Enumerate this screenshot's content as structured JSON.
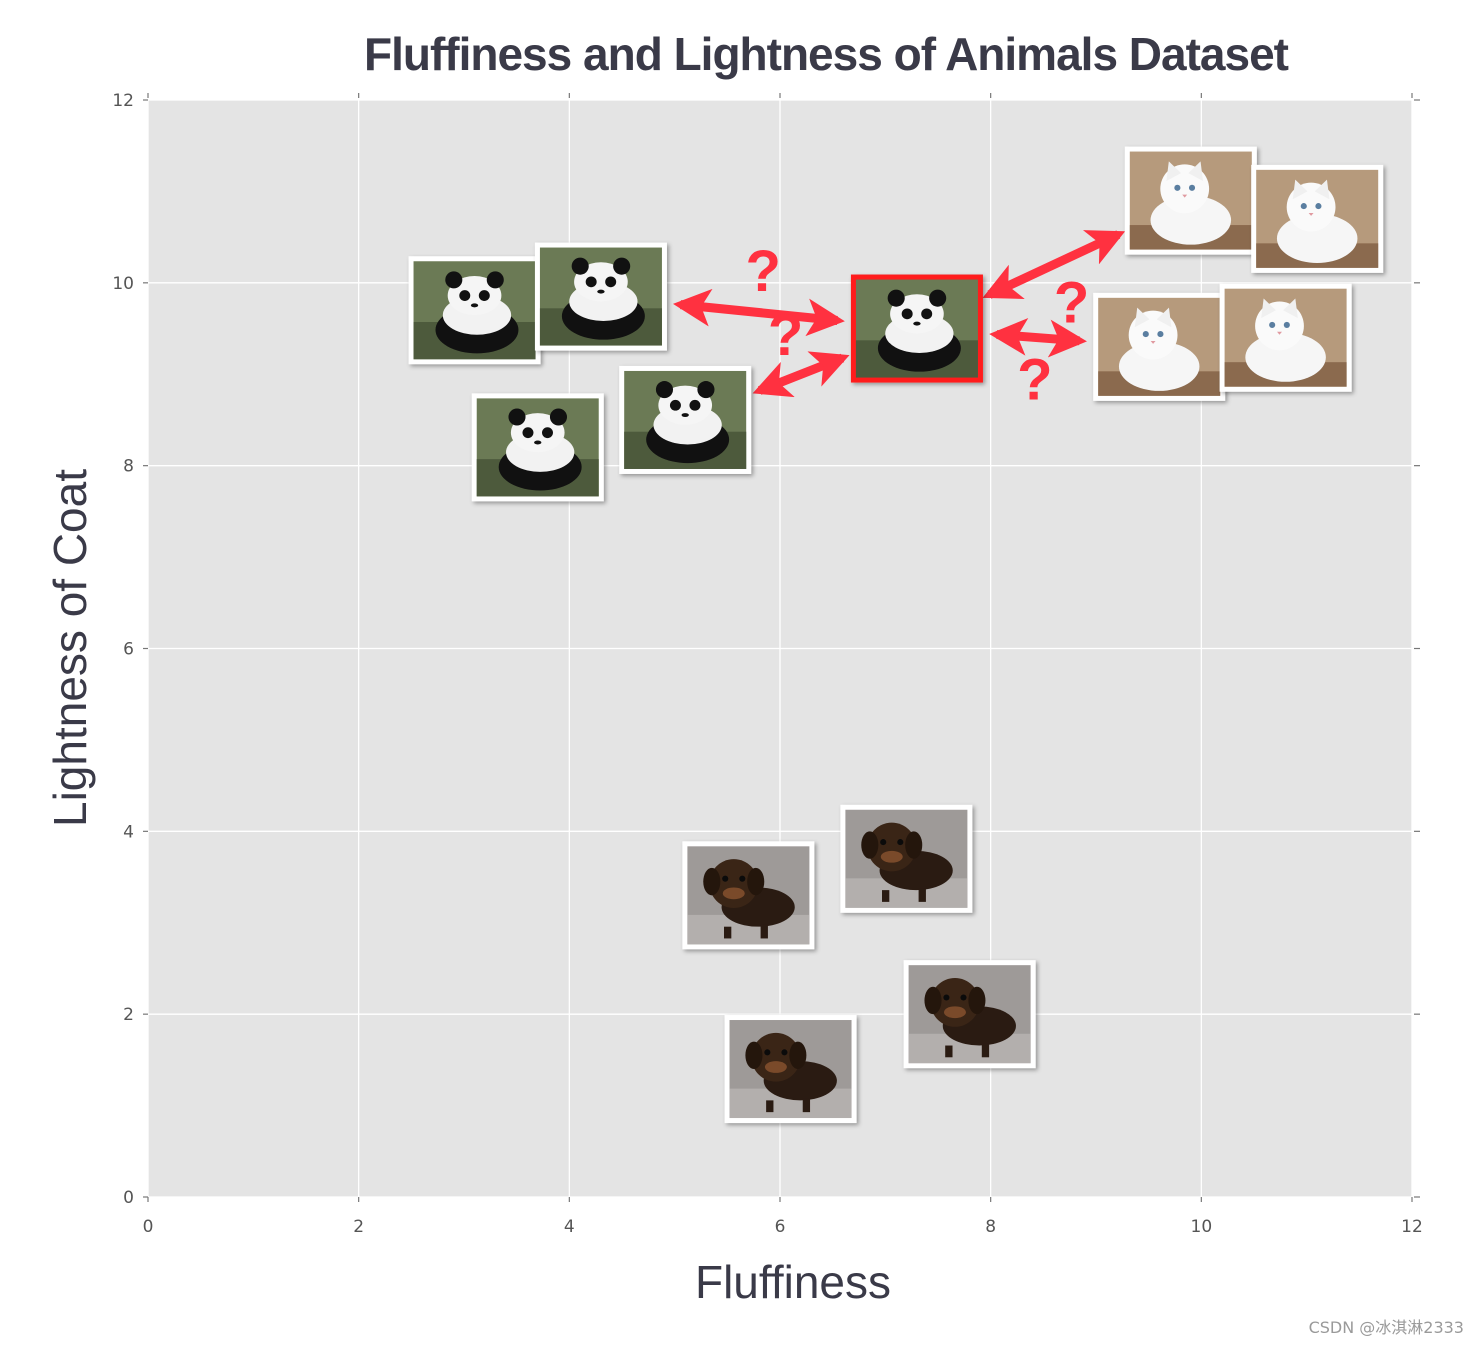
{
  "chart_data": {
    "type": "scatter",
    "title": "Fluffiness and Lightness of Animals Dataset",
    "xlabel": "Fluffiness",
    "ylabel": "Lightness of Coat",
    "xlim": [
      0,
      12
    ],
    "ylim": [
      0,
      12
    ],
    "xticks": [
      "0",
      "2",
      "4",
      "6",
      "8",
      "10",
      "12"
    ],
    "yticks": [
      "0",
      "2",
      "4",
      "6",
      "8",
      "10",
      "12"
    ],
    "grid": true,
    "background": "#e4e4e4",
    "highlight_color": "#ff1a1a",
    "arrow_color": "#ff3140",
    "query": {
      "name": "panda-query",
      "x": 7.3,
      "y": 9.5
    },
    "question_mark": "?",
    "series": [
      {
        "points": [
          {
            "icon": "panda-photo",
            "x": 3.1,
            "y": 9.7
          },
          {
            "icon": "panda-photo",
            "x": 4.3,
            "y": 9.85
          },
          {
            "icon": "panda-photo",
            "x": 3.7,
            "y": 8.2
          },
          {
            "icon": "panda-photo",
            "x": 5.1,
            "y": 8.5
          }
        ]
      },
      {
        "points": [
          {
            "icon": "cat-photo",
            "x": 9.9,
            "y": 10.9
          },
          {
            "icon": "cat-photo",
            "x": 11.1,
            "y": 10.7
          },
          {
            "icon": "cat-photo",
            "x": 9.6,
            "y": 9.3
          },
          {
            "icon": "cat-photo",
            "x": 10.8,
            "y": 9.4
          }
        ]
      },
      {
        "points": [
          {
            "icon": "dog-photo",
            "x": 5.7,
            "y": 3.3
          },
          {
            "icon": "dog-photo",
            "x": 7.2,
            "y": 3.7
          },
          {
            "icon": "dog-photo",
            "x": 6.1,
            "y": 1.4
          },
          {
            "icon": "dog-photo",
            "x": 7.8,
            "y": 2.0
          }
        ]
      }
    ]
  },
  "watermark": "CSDN @冰淇淋2333"
}
